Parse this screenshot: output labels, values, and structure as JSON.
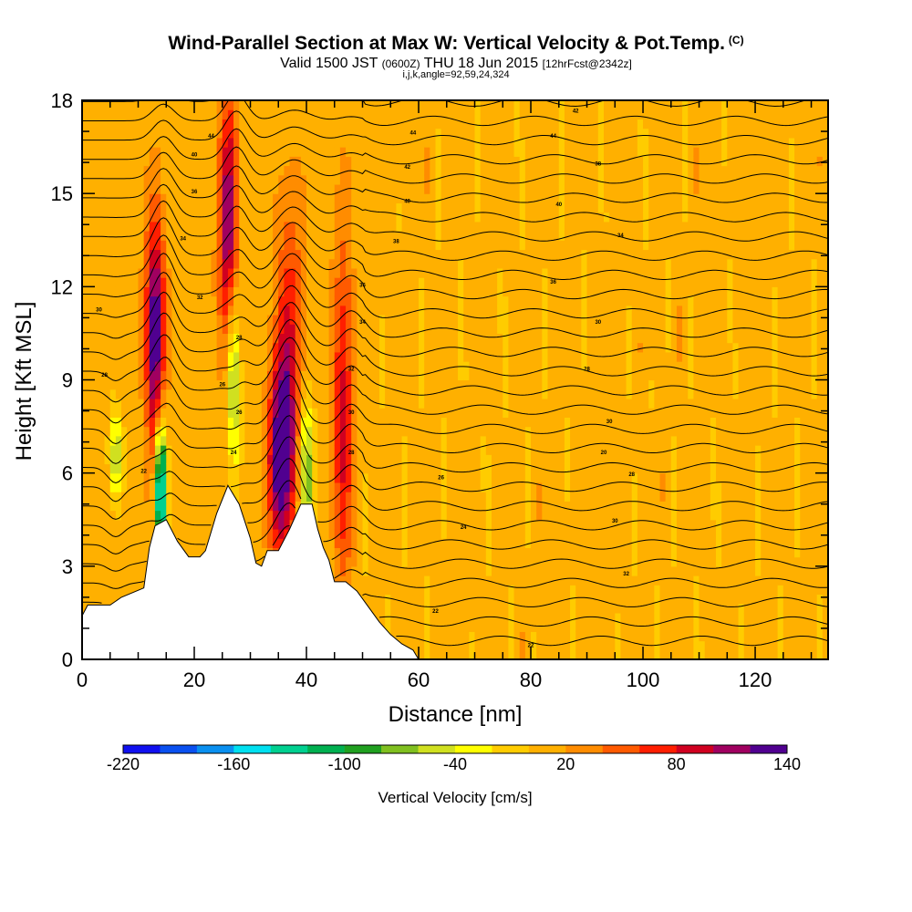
{
  "title": {
    "main": "Wind-Parallel Section at Max W: Vertical Velocity & Pot.Temp.",
    "main_unit": "(C)",
    "valid_pre": "Valid 1500 JST",
    "valid_utc": "(0600Z)",
    "valid_post": "THU 18 Jun 2015",
    "forecast": "[12hrFcst@2342z]",
    "indices": "i,j,k,angle=92,59,24,324"
  },
  "chart_data": {
    "type": "heatmap",
    "xlabel": "Distance [nm]",
    "ylabel": "Height [Kft MSL]",
    "xlim": [
      0,
      133
    ],
    "ylim": [
      0,
      18
    ],
    "x_ticks": [
      "0",
      "20",
      "40",
      "60",
      "80",
      "100",
      "120"
    ],
    "x_tick_values": [
      0,
      20,
      40,
      60,
      80,
      100,
      120
    ],
    "y_ticks": [
      "0",
      "3",
      "6",
      "9",
      "12",
      "15",
      "18"
    ],
    "y_tick_values": [
      0,
      3,
      6,
      9,
      12,
      15,
      18
    ],
    "colorbar": {
      "title": "Vertical Velocity [cm/s]",
      "labels": [
        "-220",
        "-160",
        "-100",
        "-40",
        "20",
        "80",
        "140"
      ],
      "label_values": [
        -220,
        -160,
        -100,
        -40,
        20,
        80,
        140
      ],
      "bins": [
        -220,
        -200,
        -180,
        -160,
        -140,
        -120,
        -100,
        -80,
        -60,
        -40,
        -20,
        0,
        20,
        40,
        60,
        80,
        100,
        120,
        140
      ],
      "colors": [
        "#1010f0",
        "#0a50f0",
        "#0a90f0",
        "#00e0f0",
        "#00d090",
        "#00b050",
        "#20a020",
        "#80c020",
        "#d0e020",
        "#ffff00",
        "#ffcc00",
        "#ffb000",
        "#ff8c00",
        "#ff5a00",
        "#ff1e00",
        "#d00020",
        "#a00060",
        "#500090"
      ]
    },
    "terrain_kft": [
      [
        0,
        1.4
      ],
      [
        1,
        1.75
      ],
      [
        5,
        1.75
      ],
      [
        7,
        2.0
      ],
      [
        11,
        2.3
      ],
      [
        12,
        3.6
      ],
      [
        13,
        4.3
      ],
      [
        15,
        4.5
      ],
      [
        17,
        3.8
      ],
      [
        19,
        3.3
      ],
      [
        21,
        3.3
      ],
      [
        22,
        3.5
      ],
      [
        24,
        4.7
      ],
      [
        26,
        5.6
      ],
      [
        28,
        5.0
      ],
      [
        30,
        3.9
      ],
      [
        31,
        3.1
      ],
      [
        32,
        3.0
      ],
      [
        33,
        3.5
      ],
      [
        35,
        3.5
      ],
      [
        37,
        4.2
      ],
      [
        39,
        5.0
      ],
      [
        41,
        5.0
      ],
      [
        42,
        4.2
      ],
      [
        43,
        3.6
      ],
      [
        44,
        3.2
      ],
      [
        45,
        2.5
      ],
      [
        47,
        2.5
      ],
      [
        49,
        2.2
      ],
      [
        51,
        1.7
      ],
      [
        53,
        1.2
      ],
      [
        55,
        0.8
      ],
      [
        57,
        0.5
      ],
      [
        59,
        0.3
      ],
      [
        60,
        0
      ]
    ],
    "updraft_cores": [
      {
        "x": 13,
        "y": 10.5,
        "w": 140,
        "sx": 1.2,
        "sy": 2.6
      },
      {
        "x": 26,
        "y": 14.0,
        "w": 110,
        "sx": 1.2,
        "sy": 3.0
      },
      {
        "x": 35.5,
        "y": 6.5,
        "w": 140,
        "sx": 1.6,
        "sy": 2.2
      },
      {
        "x": 37,
        "y": 10.5,
        "w": 60,
        "sx": 1.8,
        "sy": 3.5
      },
      {
        "x": 46.5,
        "y": 8.0,
        "w": 80,
        "sx": 1.3,
        "sy": 4.0
      }
    ],
    "downdraft_cores": [
      {
        "x": 14,
        "y": 5.5,
        "w": -200,
        "sx": 0.7,
        "sy": 1.5
      },
      {
        "x": 27,
        "y": 9.0,
        "w": -90,
        "sx": 0.8,
        "sy": 2.0
      },
      {
        "x": 40,
        "y": 6.0,
        "w": -100,
        "sx": 0.9,
        "sy": 1.6
      },
      {
        "x": 6,
        "y": 6.5,
        "w": -70,
        "sx": 0.8,
        "sy": 1.0
      }
    ],
    "isentrope_labels": [
      {
        "x": 23,
        "y": 16.8,
        "text": "44"
      },
      {
        "x": 59,
        "y": 16.9,
        "text": "44"
      },
      {
        "x": 84,
        "y": 16.8,
        "text": "44"
      },
      {
        "x": 88,
        "y": 17.6,
        "text": "42"
      },
      {
        "x": 20,
        "y": 16.2,
        "text": "40"
      },
      {
        "x": 58,
        "y": 15.8,
        "text": "42"
      },
      {
        "x": 92,
        "y": 15.9,
        "text": "38"
      },
      {
        "x": 20,
        "y": 15.0,
        "text": "36"
      },
      {
        "x": 58,
        "y": 14.7,
        "text": "40"
      },
      {
        "x": 85,
        "y": 14.6,
        "text": "40"
      },
      {
        "x": 18,
        "y": 13.5,
        "text": "34"
      },
      {
        "x": 56,
        "y": 13.4,
        "text": "38"
      },
      {
        "x": 96,
        "y": 13.6,
        "text": "34"
      },
      {
        "x": 50,
        "y": 12.0,
        "text": "36"
      },
      {
        "x": 84,
        "y": 12.1,
        "text": "36"
      },
      {
        "x": 21,
        "y": 11.6,
        "text": "32"
      },
      {
        "x": 3,
        "y": 11.2,
        "text": "30"
      },
      {
        "x": 28,
        "y": 10.3,
        "text": "28"
      },
      {
        "x": 50,
        "y": 10.8,
        "text": "34"
      },
      {
        "x": 92,
        "y": 10.8,
        "text": "30"
      },
      {
        "x": 4,
        "y": 9.1,
        "text": "28"
      },
      {
        "x": 25,
        "y": 8.8,
        "text": "26"
      },
      {
        "x": 48,
        "y": 9.3,
        "text": "32"
      },
      {
        "x": 90,
        "y": 9.3,
        "text": "28"
      },
      {
        "x": 28,
        "y": 7.9,
        "text": "26"
      },
      {
        "x": 48,
        "y": 7.9,
        "text": "30"
      },
      {
        "x": 94,
        "y": 7.6,
        "text": "30"
      },
      {
        "x": 27,
        "y": 6.6,
        "text": "24"
      },
      {
        "x": 48,
        "y": 6.6,
        "text": "28"
      },
      {
        "x": 93,
        "y": 6.6,
        "text": "20"
      },
      {
        "x": 11,
        "y": 6.0,
        "text": "22"
      },
      {
        "x": 64,
        "y": 5.8,
        "text": "26"
      },
      {
        "x": 98,
        "y": 5.9,
        "text": "28"
      },
      {
        "x": 68,
        "y": 4.2,
        "text": "24"
      },
      {
        "x": 95,
        "y": 4.4,
        "text": "30"
      },
      {
        "x": 97,
        "y": 2.7,
        "text": "32"
      },
      {
        "x": 63,
        "y": 1.5,
        "text": "22"
      },
      {
        "x": 80,
        "y": 0.4,
        "text": "22"
      }
    ]
  }
}
